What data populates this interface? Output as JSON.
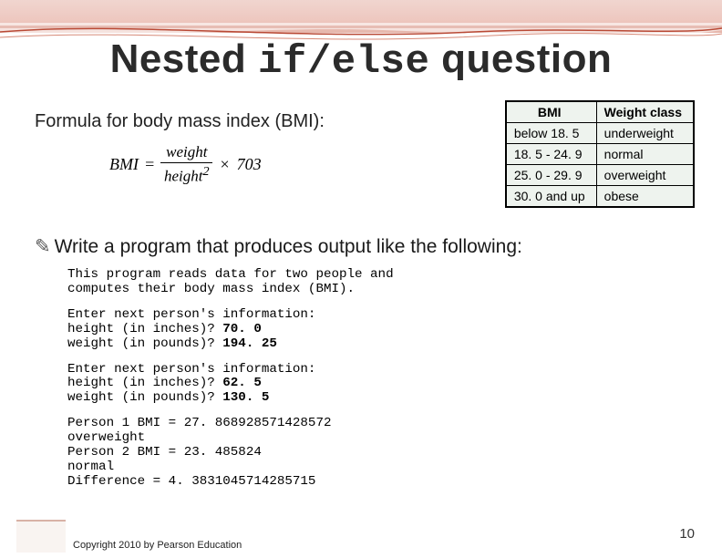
{
  "title": {
    "part1": "Nested ",
    "code": "if/else",
    "part2": " question"
  },
  "subtitle": "Formula for body mass index (BMI):",
  "formula": {
    "lhs": "BMI",
    "eq": "=",
    "num": "weight",
    "den": "height",
    "exp": "2",
    "times": "×",
    "factor": "703"
  },
  "bmi_table": {
    "headers": [
      "BMI",
      "Weight class"
    ],
    "rows": [
      [
        "below 18. 5",
        "underweight"
      ],
      [
        "18. 5 - 24. 9",
        "normal"
      ],
      [
        "25. 0 - 29. 9",
        "overweight"
      ],
      [
        "30. 0 and up",
        "obese"
      ]
    ],
    "background_color": "#eef3ee",
    "border_color": "#000000",
    "header_fontweight": "bold",
    "fontsize": 14
  },
  "bullet": {
    "symbol": "✎",
    "text": "Write a program that produces output like the following:"
  },
  "console": {
    "lines": [
      {
        "t": "This program reads data for two people and"
      },
      {
        "t": "computes their body mass index (BMI)."
      },
      {
        "sep": true
      },
      {
        "t": "Enter next person's information:"
      },
      {
        "t": "height (in inches)? ",
        "b": "70. 0"
      },
      {
        "t": "weight (in pounds)? ",
        "b": "194. 25"
      },
      {
        "sep": true
      },
      {
        "t": "Enter next person's information:"
      },
      {
        "t": "height (in inches)? ",
        "b": "62. 5"
      },
      {
        "t": "weight (in pounds)? ",
        "b": "130. 5"
      },
      {
        "sep": true
      },
      {
        "t": "Person 1 BMI = 27. 868928571428572"
      },
      {
        "t": "overweight"
      },
      {
        "t": "Person 2 BMI = 23. 485824"
      },
      {
        "t": "normal"
      },
      {
        "t": "Difference = 4. 3831045714285715"
      }
    ]
  },
  "page_number": "10",
  "copyright": "Copyright 2010 by Pearson Education",
  "colors": {
    "top_band_start": "#f0d5cf",
    "top_band_end": "#e6b6ab",
    "accent": "#c45a44",
    "swoosh": "#b94a36",
    "background": "#ffffff",
    "text": "#2b2b2b"
  }
}
